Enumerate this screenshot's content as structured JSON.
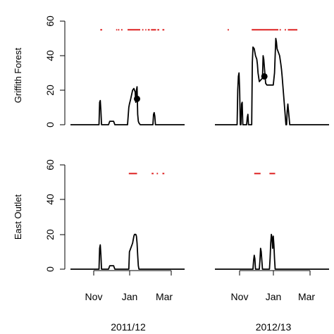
{
  "chart_data": {
    "type": "line",
    "rows": [
      "Griffith Forest",
      "East Outlet"
    ],
    "columns": [
      "2011/12",
      "2012/13"
    ],
    "x_ticks": [
      "Nov",
      "Jan",
      "Mar"
    ],
    "y_ticks": [
      "0",
      "20",
      "40",
      "60"
    ],
    "ylim": [
      0,
      60
    ],
    "x_unit": "day",
    "xlim": [
      0,
      180
    ],
    "x_tick_positions": [
      28,
      92,
      152
    ],
    "marker_color": "#dd2222",
    "line_color": "#000000",
    "panels": [
      {
        "row": 0,
        "col": 0,
        "x": [
          0,
          45,
          46,
          47,
          48,
          49,
          50,
          60,
          62,
          66,
          68,
          70,
          80,
          90,
          92,
          93,
          95,
          98,
          100,
          101,
          102,
          103,
          104,
          105,
          106,
          107,
          108,
          110,
          130,
          131,
          132,
          133,
          134,
          135,
          180
        ],
        "y": [
          0,
          0,
          13,
          14,
          8,
          0,
          0,
          0,
          2,
          2,
          2,
          0,
          0,
          0,
          10,
          12,
          15,
          20,
          21,
          20,
          19,
          13,
          20,
          22,
          6,
          2,
          1,
          0,
          0,
          6,
          7,
          5,
          0,
          0,
          0
        ],
        "point": {
          "x": 105,
          "y": 15
        },
        "marker_line_y": 55,
        "marker_ranges": [
          [
            47,
            50
          ],
          [
            72,
            73
          ],
          [
            75,
            77
          ],
          [
            80,
            82
          ],
          [
            90,
            110
          ],
          [
            113,
            115
          ],
          [
            118,
            119
          ],
          [
            122,
            125
          ],
          [
            127,
            135
          ],
          [
            137,
            140
          ],
          [
            145,
            148
          ]
        ]
      },
      {
        "row": 0,
        "col": 1,
        "x": [
          0,
          35,
          36,
          37,
          38,
          39,
          40,
          41,
          42,
          43,
          44,
          50,
          51,
          52,
          53,
          58,
          59,
          60,
          62,
          64,
          66,
          67,
          68,
          70,
          75,
          76,
          77,
          80,
          82,
          84,
          86,
          88,
          92,
          94,
          96,
          97,
          98,
          100,
          102,
          104,
          105,
          106,
          112,
          113,
          114,
          115,
          116,
          118,
          120,
          180
        ],
        "y": [
          0,
          0,
          20,
          28,
          30,
          20,
          0,
          0,
          12,
          13,
          0,
          0,
          4,
          6,
          0,
          0,
          36,
          45,
          44,
          40,
          38,
          35,
          30,
          25,
          27,
          40,
          38,
          24,
          23,
          23,
          23,
          23,
          23,
          30,
          50,
          48,
          44,
          42,
          40,
          35,
          32,
          28,
          0,
          0,
          8,
          12,
          8,
          0,
          0,
          0
        ],
        "point": {
          "x": 78,
          "y": 28
        },
        "marker_line_y": 55,
        "marker_ranges": [
          [
            20,
            22
          ],
          [
            58,
            100
          ],
          [
            102,
            104
          ],
          [
            110,
            112
          ],
          [
            115,
            130
          ]
        ]
      },
      {
        "row": 1,
        "col": 0,
        "x": [
          0,
          45,
          46,
          47,
          48,
          49,
          50,
          60,
          62,
          66,
          68,
          70,
          90,
          92,
          93,
          95,
          98,
          100,
          101,
          102,
          103,
          104,
          105,
          106,
          107,
          108,
          110,
          180
        ],
        "y": [
          0,
          0,
          12,
          14,
          8,
          0,
          0,
          0,
          2,
          2,
          2,
          0,
          0,
          0,
          10,
          12,
          15,
          19,
          20,
          20,
          20,
          19,
          15,
          8,
          2,
          0,
          0,
          0
        ],
        "point": null,
        "marker_line_y": 55,
        "marker_ranges": [
          [
            92,
            105
          ],
          [
            128,
            131
          ],
          [
            136,
            138
          ],
          [
            145,
            148
          ]
        ]
      },
      {
        "row": 1,
        "col": 1,
        "x": [
          0,
          60,
          61,
          62,
          63,
          64,
          65,
          70,
          71,
          72,
          73,
          74,
          75,
          80,
          86,
          87,
          88,
          89,
          90,
          91,
          92,
          93,
          94,
          95,
          180
        ],
        "y": [
          0,
          0,
          5,
          8,
          6,
          0,
          0,
          0,
          5,
          12,
          10,
          5,
          0,
          0,
          0,
          6,
          15,
          20,
          18,
          12,
          19,
          14,
          6,
          0,
          0
        ],
        "point": null,
        "marker_line_y": 55,
        "marker_ranges": [
          [
            62,
            72
          ],
          [
            86,
            95
          ]
        ]
      }
    ]
  }
}
